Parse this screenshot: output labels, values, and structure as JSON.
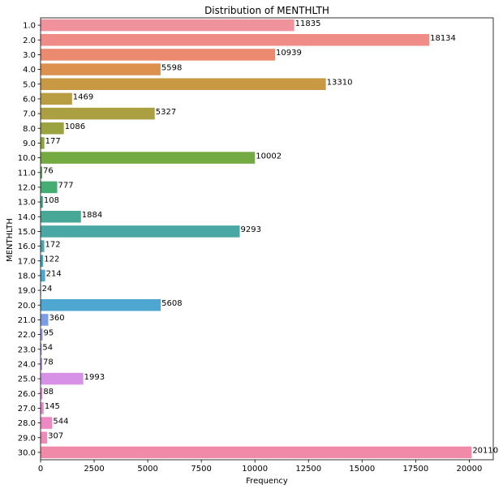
{
  "chart_data": {
    "type": "bar",
    "orientation": "horizontal",
    "title": "Distribution of MENTHLTH",
    "xlabel": "Frequency",
    "ylabel": "MENTHLTH",
    "xlim": [
      0,
      21120
    ],
    "x_ticks": [
      0,
      2500,
      5000,
      7500,
      10000,
      12500,
      15000,
      17500,
      20000
    ],
    "grid": false,
    "legend": "none",
    "categories": [
      "1.0",
      "2.0",
      "3.0",
      "4.0",
      "5.0",
      "6.0",
      "7.0",
      "8.0",
      "9.0",
      "10.0",
      "11.0",
      "12.0",
      "13.0",
      "14.0",
      "15.0",
      "16.0",
      "17.0",
      "18.0",
      "19.0",
      "20.0",
      "21.0",
      "22.0",
      "23.0",
      "24.0",
      "25.0",
      "26.0",
      "27.0",
      "28.0",
      "29.0",
      "30.0"
    ],
    "values": [
      11835,
      18134,
      10939,
      5598,
      13310,
      1469,
      5327,
      1086,
      177,
      10002,
      76,
      777,
      108,
      1884,
      9293,
      172,
      122,
      214,
      24,
      5608,
      360,
      95,
      54,
      78,
      1993,
      88,
      145,
      544,
      307,
      20110
    ],
    "colors": [
      "#f0929c",
      "#ef8c88",
      "#eb8a6e",
      "#dd914f",
      "#c99843",
      "#b99d42",
      "#aa9f41",
      "#9ba341",
      "#8aa640",
      "#73aa41",
      "#4caf4a",
      "#46ad72",
      "#47aa87",
      "#48a897",
      "#49a7a4",
      "#4aa7b1",
      "#4aa8bd",
      "#4ea8d0",
      "#58a4dd",
      "#4ea7d0",
      "#7b9de4",
      "#979be9",
      "#a994ed",
      "#c18cec",
      "#d792e8",
      "#e689dc",
      "#eb89cf",
      "#ee88c3",
      "#f089b8",
      "#f08aa8"
    ]
  }
}
